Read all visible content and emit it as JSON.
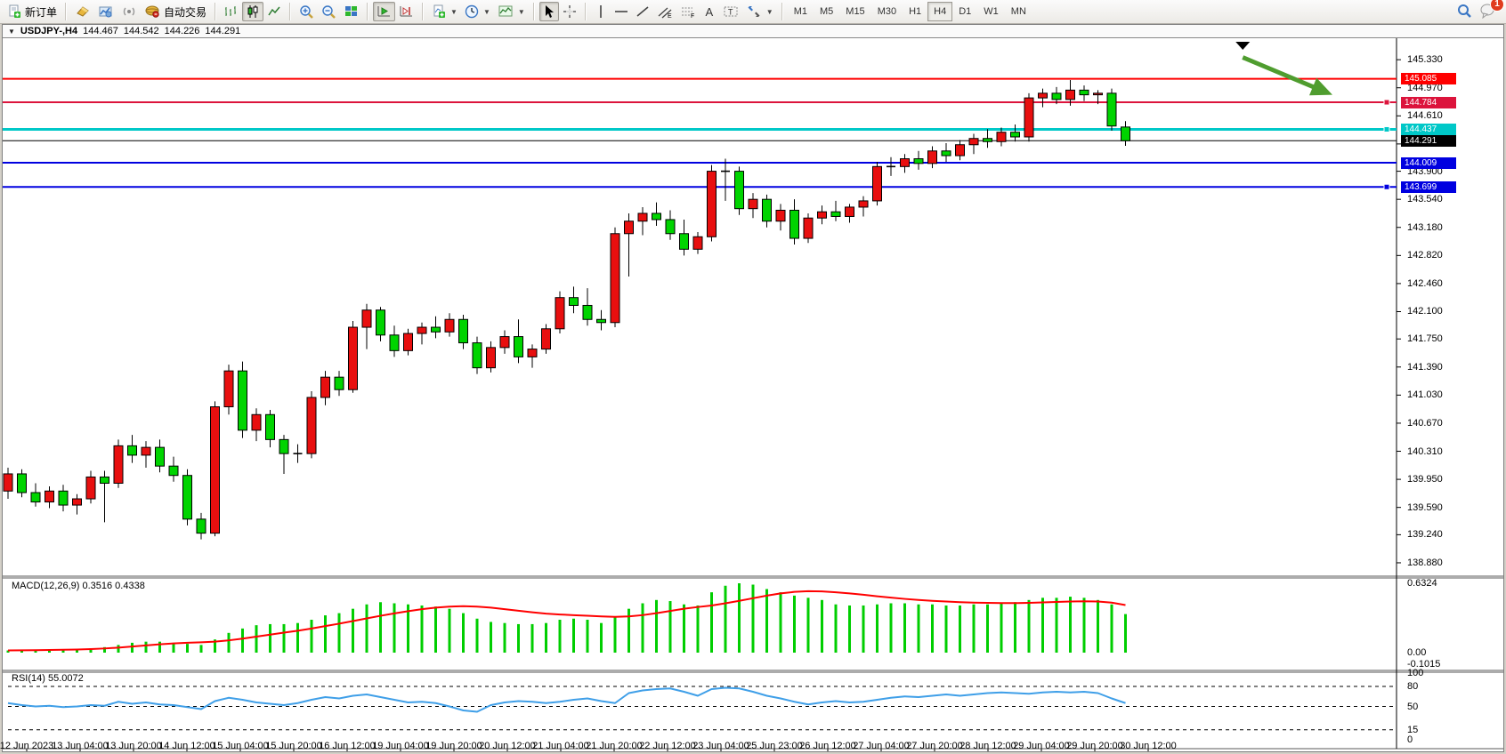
{
  "toolbar": {
    "new_order_label": "新订单",
    "autotrade_label": "自动交易",
    "chart_mode_icons": [
      "bar-chart-icon",
      "candlestick-icon",
      "line-chart-icon"
    ],
    "timeframes": [
      {
        "label": "M1",
        "active": false
      },
      {
        "label": "M5",
        "active": false
      },
      {
        "label": "M15",
        "active": false
      },
      {
        "label": "M30",
        "active": false
      },
      {
        "label": "H1",
        "active": false
      },
      {
        "label": "H4",
        "active": true
      },
      {
        "label": "D1",
        "active": false
      },
      {
        "label": "W1",
        "active": false
      },
      {
        "label": "MN",
        "active": false
      }
    ],
    "text_tool_label": "A",
    "chat_badge_count": "1"
  },
  "chart_window": {
    "title": {
      "symbol_period": "USDJPY-,H4",
      "open": "144.467",
      "high": "144.542",
      "low": "144.226",
      "close": "144.291"
    }
  },
  "price_scale": {
    "ticks": [
      "145.330",
      "144.970",
      "144.610",
      "144.250",
      "143.900",
      "143.540",
      "143.180",
      "142.820",
      "142.460",
      "142.100",
      "141.750",
      "141.390",
      "141.030",
      "140.670",
      "140.310",
      "139.950",
      "139.590",
      "139.240",
      "138.880"
    ]
  },
  "time_scale": {
    "labels": [
      "12 Jun 2023",
      "13 Jun 04:00",
      "13 Jun 20:00",
      "14 Jun 12:00",
      "15 Jun 04:00",
      "15 Jun 20:00",
      "16 Jun 12:00",
      "19 Jun 04:00",
      "19 Jun 20:00",
      "20 Jun 12:00",
      "21 Jun 04:00",
      "21 Jun 20:00",
      "22 Jun 12:00",
      "23 Jun 04:00",
      "25 Jun 23:00",
      "26 Jun 12:00",
      "27 Jun 04:00",
      "27 Jun 20:00",
      "28 Jun 12:00",
      "29 Jun 04:00",
      "29 Jun 20:00",
      "30 Jun 12:00"
    ]
  },
  "chart_data": {
    "type": "candlestick",
    "symbol": "USDJPY-",
    "timeframe": "H4",
    "up_color": "#e80f0f",
    "down_color": "#00d400",
    "price_range_visible": [
      138.72,
      145.4
    ],
    "candles": [
      [
        139.8,
        140.1,
        139.7,
        140.02
      ],
      [
        140.02,
        140.08,
        139.72,
        139.78
      ],
      [
        139.78,
        139.9,
        139.6,
        139.66
      ],
      [
        139.66,
        139.86,
        139.58,
        139.8
      ],
      [
        139.8,
        139.88,
        139.54,
        139.62
      ],
      [
        139.62,
        139.76,
        139.5,
        139.7
      ],
      [
        139.7,
        140.06,
        139.64,
        139.98
      ],
      [
        139.98,
        140.06,
        139.4,
        139.9
      ],
      [
        139.9,
        140.46,
        139.84,
        140.38
      ],
      [
        140.38,
        140.52,
        140.16,
        140.26
      ],
      [
        140.26,
        140.44,
        140.1,
        140.36
      ],
      [
        140.36,
        140.46,
        140.04,
        140.12
      ],
      [
        140.12,
        140.24,
        139.92,
        140.0
      ],
      [
        140.0,
        140.08,
        139.36,
        139.44
      ],
      [
        139.44,
        139.52,
        139.18,
        139.26
      ],
      [
        139.26,
        140.95,
        139.22,
        140.88
      ],
      [
        140.88,
        141.42,
        140.78,
        141.34
      ],
      [
        141.34,
        141.46,
        140.48,
        140.58
      ],
      [
        140.58,
        140.86,
        140.44,
        140.78
      ],
      [
        140.78,
        140.84,
        140.36,
        140.46
      ],
      [
        140.46,
        140.52,
        140.02,
        140.28
      ],
      [
        140.28,
        140.4,
        140.16,
        140.28
      ],
      [
        140.28,
        141.08,
        140.22,
        141.0
      ],
      [
        141.0,
        141.34,
        140.9,
        141.26
      ],
      [
        141.26,
        141.34,
        141.02,
        141.1
      ],
      [
        141.1,
        141.98,
        141.06,
        141.9
      ],
      [
        141.9,
        142.2,
        141.62,
        142.12
      ],
      [
        142.12,
        142.16,
        141.72,
        141.8
      ],
      [
        141.8,
        141.92,
        141.52,
        141.6
      ],
      [
        141.6,
        141.88,
        141.54,
        141.82
      ],
      [
        141.82,
        141.96,
        141.68,
        141.9
      ],
      [
        141.9,
        142.04,
        141.76,
        141.84
      ],
      [
        141.84,
        142.08,
        141.78,
        142.0
      ],
      [
        142.0,
        142.06,
        141.62,
        141.7
      ],
      [
        141.7,
        141.78,
        141.3,
        141.38
      ],
      [
        141.38,
        141.72,
        141.32,
        141.64
      ],
      [
        141.64,
        141.86,
        141.56,
        141.78
      ],
      [
        141.78,
        142.0,
        141.44,
        141.52
      ],
      [
        141.52,
        141.68,
        141.38,
        141.62
      ],
      [
        141.62,
        141.94,
        141.56,
        141.88
      ],
      [
        141.88,
        142.36,
        141.82,
        142.28
      ],
      [
        142.28,
        142.42,
        142.08,
        142.18
      ],
      [
        142.18,
        142.4,
        141.92,
        142.0
      ],
      [
        142.0,
        142.12,
        141.86,
        141.96
      ],
      [
        141.96,
        143.18,
        141.9,
        143.1
      ],
      [
        143.1,
        143.36,
        142.55,
        143.26
      ],
      [
        143.26,
        143.44,
        143.08,
        143.36
      ],
      [
        143.36,
        143.5,
        143.2,
        143.28
      ],
      [
        143.28,
        143.4,
        143.02,
        143.1
      ],
      [
        143.1,
        143.28,
        142.82,
        142.9
      ],
      [
        142.9,
        143.12,
        142.84,
        143.06
      ],
      [
        143.06,
        143.98,
        143.0,
        143.9
      ],
      [
        143.9,
        144.06,
        143.52,
        143.9
      ],
      [
        143.9,
        143.96,
        143.34,
        143.42
      ],
      [
        143.42,
        143.62,
        143.3,
        143.54
      ],
      [
        143.54,
        143.6,
        143.18,
        143.26
      ],
      [
        143.26,
        143.48,
        143.14,
        143.4
      ],
      [
        143.4,
        143.54,
        142.96,
        143.04
      ],
      [
        143.04,
        143.36,
        142.98,
        143.3
      ],
      [
        143.3,
        143.46,
        143.22,
        143.38
      ],
      [
        143.38,
        143.52,
        143.26,
        143.32
      ],
      [
        143.32,
        143.48,
        143.24,
        143.44
      ],
      [
        143.44,
        143.58,
        143.32,
        143.52
      ],
      [
        143.52,
        144.02,
        143.46,
        143.96
      ],
      [
        143.96,
        144.08,
        143.84,
        143.96
      ],
      [
        143.96,
        144.12,
        143.88,
        144.06
      ],
      [
        144.06,
        144.16,
        143.92,
        144.0
      ],
      [
        144.0,
        144.22,
        143.94,
        144.16
      ],
      [
        144.16,
        144.26,
        144.02,
        144.1
      ],
      [
        144.1,
        144.3,
        144.04,
        144.24
      ],
      [
        144.24,
        144.38,
        144.12,
        144.32
      ],
      [
        144.32,
        144.44,
        144.2,
        144.28
      ],
      [
        144.28,
        144.46,
        144.22,
        144.4
      ],
      [
        144.4,
        144.5,
        144.28,
        144.34
      ],
      [
        144.34,
        144.9,
        144.28,
        144.84
      ],
      [
        144.84,
        144.96,
        144.72,
        144.9
      ],
      [
        144.9,
        144.98,
        144.76,
        144.82
      ],
      [
        144.82,
        145.07,
        144.74,
        144.94
      ],
      [
        144.94,
        145.0,
        144.8,
        144.88
      ],
      [
        144.88,
        144.94,
        144.76,
        144.9
      ],
      [
        144.9,
        144.96,
        144.42,
        144.48
      ],
      [
        144.467,
        144.542,
        144.226,
        144.291
      ]
    ],
    "horizontal_lines": [
      {
        "price": 145.085,
        "color": "#ff0000",
        "width": 2,
        "label": "145.085",
        "badge_bg": "#ff0000",
        "handle": false
      },
      {
        "price": 144.784,
        "color": "#dc143c",
        "width": 2,
        "label": "144.784",
        "badge_bg": "#dc143c",
        "handle": true
      },
      {
        "price": 144.437,
        "color": "#00c8c8",
        "width": 3,
        "label": "144.437",
        "badge_bg": "#00c8c8",
        "handle": true
      },
      {
        "price": 144.291,
        "color": "#000000",
        "width": 1,
        "label": "144.291",
        "badge_bg": "#000000",
        "handle": false
      },
      {
        "price": 144.009,
        "color": "#0000e0",
        "width": 2,
        "label": "144.009",
        "badge_bg": "#0000e0",
        "handle": false
      },
      {
        "price": 143.699,
        "color": "#0000e0",
        "width": 2,
        "label": "143.699",
        "badge_bg": "#0000e0",
        "handle": true
      }
    ],
    "annotations": {
      "top_marker": {
        "shape": "triangle-down",
        "color": "#000000",
        "x_index": 89.5
      },
      "trend_arrow": {
        "color": "#4f9d2f",
        "x1_index": 89.5,
        "price1": 145.36,
        "x2_index": 96,
        "price2": 144.88
      }
    },
    "indicators": [
      {
        "name": "MACD",
        "label": "MACD(12,26,9) 0.3516 0.4338",
        "params": [
          12,
          26,
          9
        ],
        "current_macd": 0.3516,
        "current_signal": 0.4338,
        "axis_labels": [
          "0.6324",
          "0.00",
          "-0.1015"
        ],
        "axis_values": [
          0.6324,
          0.0,
          -0.1015
        ],
        "hist_color": "#00ce00",
        "signal_color": "#ff0000",
        "histogram": [
          0.02,
          0.022,
          0.025,
          0.028,
          0.026,
          0.03,
          0.04,
          0.05,
          0.07,
          0.09,
          0.1,
          0.1,
          0.09,
          0.08,
          0.07,
          0.12,
          0.18,
          0.22,
          0.25,
          0.26,
          0.26,
          0.27,
          0.3,
          0.34,
          0.36,
          0.4,
          0.44,
          0.46,
          0.45,
          0.44,
          0.43,
          0.42,
          0.4,
          0.36,
          0.31,
          0.28,
          0.27,
          0.26,
          0.26,
          0.27,
          0.3,
          0.31,
          0.3,
          0.27,
          0.33,
          0.4,
          0.45,
          0.48,
          0.47,
          0.44,
          0.43,
          0.55,
          0.61,
          0.632,
          0.62,
          0.58,
          0.55,
          0.52,
          0.5,
          0.48,
          0.44,
          0.43,
          0.43,
          0.44,
          0.45,
          0.45,
          0.44,
          0.44,
          0.43,
          0.43,
          0.44,
          0.44,
          0.45,
          0.46,
          0.48,
          0.5,
          0.5,
          0.51,
          0.5,
          0.48,
          0.44,
          0.3516
        ],
        "signal": [
          0.02,
          0.021,
          0.022,
          0.024,
          0.026,
          0.028,
          0.032,
          0.038,
          0.046,
          0.056,
          0.066,
          0.076,
          0.084,
          0.09,
          0.094,
          0.1,
          0.112,
          0.128,
          0.146,
          0.164,
          0.182,
          0.2,
          0.22,
          0.242,
          0.264,
          0.288,
          0.312,
          0.336,
          0.358,
          0.378,
          0.396,
          0.41,
          0.42,
          0.424,
          0.42,
          0.41,
          0.396,
          0.382,
          0.368,
          0.356,
          0.348,
          0.342,
          0.336,
          0.33,
          0.326,
          0.33,
          0.342,
          0.36,
          0.38,
          0.4,
          0.416,
          0.43,
          0.45,
          0.472,
          0.496,
          0.52,
          0.54,
          0.554,
          0.56,
          0.558,
          0.55,
          0.54,
          0.528,
          0.514,
          0.502,
          0.49,
          0.48,
          0.472,
          0.466,
          0.46,
          0.456,
          0.454,
          0.452,
          0.452,
          0.454,
          0.458,
          0.462,
          0.466,
          0.468,
          0.466,
          0.456,
          0.4338
        ]
      },
      {
        "name": "RSI",
        "label": "RSI(14) 55.0072",
        "params": [
          14
        ],
        "current": 55.0072,
        "axis_labels": [
          "100",
          "80",
          "50",
          "15",
          "0"
        ],
        "axis_values": [
          100,
          80,
          50,
          15,
          0
        ],
        "dashed_levels": [
          80,
          50,
          15
        ],
        "line_color": "#3f9fe8",
        "values": [
          55,
          52,
          50,
          51,
          49,
          50,
          52,
          51,
          57,
          54,
          56,
          53,
          52,
          49,
          46,
          58,
          63,
          60,
          56,
          54,
          52,
          55,
          60,
          64,
          62,
          66,
          68,
          64,
          60,
          56,
          57,
          55,
          50,
          44,
          42,
          52,
          56,
          58,
          57,
          55,
          57,
          60,
          62,
          58,
          55,
          70,
          74,
          76,
          77,
          72,
          66,
          76,
          78,
          77,
          72,
          66,
          62,
          57,
          53,
          56,
          58,
          56,
          57,
          60,
          63,
          65,
          64,
          66,
          68,
          66,
          68,
          70,
          71,
          70,
          69,
          71,
          72,
          71,
          72,
          70,
          62,
          55.0072
        ]
      }
    ]
  }
}
